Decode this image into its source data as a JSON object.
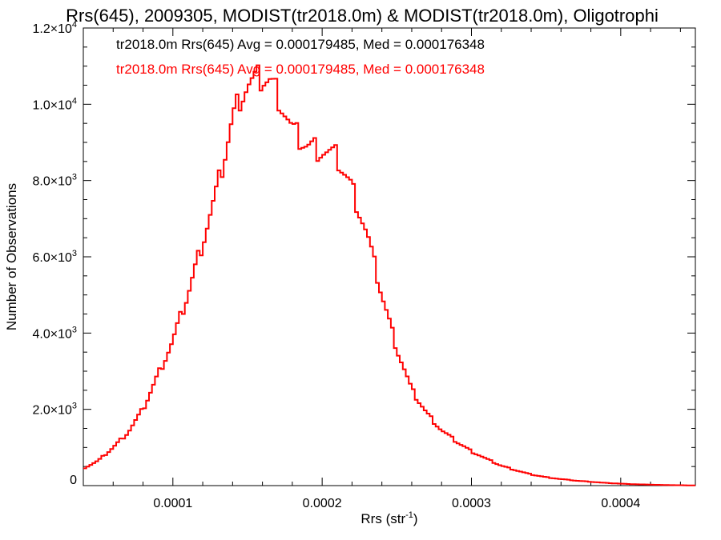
{
  "chart_data": {
    "type": "line",
    "title": "Rrs(645), 2009305, MODIST(tr2018.0m) & MODIST(tr2018.0m), Oligotrophi",
    "xlabel": {
      "base": "Rrs (str",
      "sup": "-1",
      "close": ")"
    },
    "ylabel": "Number of Observations",
    "xlim": [
      4e-05,
      0.00045
    ],
    "ylim": [
      0,
      12000
    ],
    "x_ticks": [
      {
        "v": 0.0001,
        "label": "0.0001"
      },
      {
        "v": 0.0002,
        "label": "0.0002"
      },
      {
        "v": 0.0003,
        "label": "0.0003"
      },
      {
        "v": 0.0004,
        "label": "0.0004"
      }
    ],
    "y_ticks": [
      {
        "v": 0,
        "mant": "0",
        "exp": ""
      },
      {
        "v": 2000,
        "mant": "2.0×10",
        "exp": "3"
      },
      {
        "v": 4000,
        "mant": "4.0×10",
        "exp": "3"
      },
      {
        "v": 6000,
        "mant": "6.0×10",
        "exp": "3"
      },
      {
        "v": 8000,
        "mant": "8.0×10",
        "exp": "3"
      },
      {
        "v": 10000,
        "mant": "1.0×10",
        "exp": "4"
      },
      {
        "v": 12000,
        "mant": "1.2×10",
        "exp": "4"
      }
    ],
    "legend": [
      {
        "text": "tr2018.0m Rrs(645) Avg = 0.000179485, Med = 0.000176348",
        "color": "#000000"
      },
      {
        "text": "tr2018.0m Rrs(645) Avg = 0.000179485, Med = 0.000176348",
        "color": "#ff0000"
      }
    ],
    "legend_position": "top-left",
    "series": [
      {
        "color": "#ff0000",
        "x": [
          4e-05,
          5e-05,
          6e-05,
          7e-05,
          8e-05,
          9e-05,
          0.0001,
          0.00011,
          0.00012,
          0.00013,
          0.000135,
          0.00014,
          0.000145,
          0.00015,
          0.000155,
          0.00016,
          0.000165,
          0.00017,
          0.000175,
          0.00018,
          0.00019,
          0.0002,
          0.00021,
          0.00022,
          0.00023,
          0.00024,
          0.00025,
          0.00026,
          0.00027,
          0.00028,
          0.00029,
          0.0003,
          0.00031,
          0.00032,
          0.00033,
          0.00034,
          0.00035,
          0.00036,
          0.00037,
          0.00038,
          0.00039,
          0.0004,
          0.00041,
          0.00042,
          0.00043,
          0.00044,
          0.00045
        ],
        "y": [
          450,
          650,
          1000,
          1400,
          2000,
          2900,
          3800,
          5000,
          6400,
          7800,
          8700,
          9600,
          10200,
          10500,
          10600,
          10700,
          10600,
          10300,
          9800,
          9300,
          8900,
          8800,
          8600,
          7800,
          6600,
          5000,
          3600,
          2500,
          1900,
          1450,
          1150,
          900,
          700,
          520,
          400,
          290,
          220,
          170,
          130,
          100,
          70,
          50,
          35,
          25,
          15,
          10,
          5
        ]
      }
    ]
  }
}
